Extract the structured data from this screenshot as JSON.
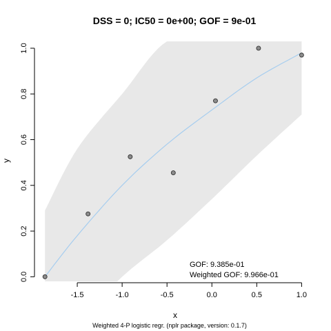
{
  "chart_data": {
    "type": "scatter",
    "title": "DSS = 0; IC50 = 0e+00; GOF = 9e-01",
    "xlabel": "x",
    "ylabel": "y",
    "caption": "Weighted 4-P logistic regr. (nplr package, version: 0.1.7)",
    "xlim": [
      -1.9,
      1.02
    ],
    "ylim": [
      -0.02,
      1.03
    ],
    "x_ticks": [
      -1.5,
      -1.0,
      -0.5,
      0.0,
      0.5,
      1.0
    ],
    "x_tick_labels": [
      "-1.5",
      "-1.0",
      "-0.5",
      "0.0",
      "0.5",
      "1.0"
    ],
    "y_ticks": [
      0.0,
      0.2,
      0.4,
      0.6,
      0.8,
      1.0
    ],
    "y_tick_labels": [
      "0.0",
      "0.2",
      "0.4",
      "0.6",
      "0.8",
      "1.0"
    ],
    "points": [
      {
        "x": -1.86,
        "y": 0.0
      },
      {
        "x": -1.38,
        "y": 0.275
      },
      {
        "x": -0.91,
        "y": 0.525
      },
      {
        "x": -0.43,
        "y": 0.455
      },
      {
        "x": 0.04,
        "y": 0.77
      },
      {
        "x": 0.52,
        "y": 1.0
      },
      {
        "x": 1.0,
        "y": 0.97
      }
    ],
    "fit_curve": {
      "x": [
        -1.86,
        -1.5,
        -1.0,
        -0.5,
        0.0,
        0.5,
        1.0
      ],
      "y": [
        0.0,
        0.18,
        0.4,
        0.58,
        0.73,
        0.87,
        0.98
      ]
    },
    "confidence_band": {
      "x": [
        -1.86,
        -1.5,
        -1.0,
        -0.5,
        0.0,
        0.5,
        1.0
      ],
      "lower": [
        -0.3,
        -0.2,
        0.0,
        0.16,
        0.34,
        0.53,
        0.71
      ],
      "upper": [
        0.29,
        0.56,
        0.8,
        1.03,
        1.03,
        1.03,
        1.03
      ]
    },
    "annotations": [
      "GOF: 9.385e-01",
      "Weighted GOF: 9.966e-01"
    ],
    "colors": {
      "band": "#e8e8e8",
      "curve": "#a6cdef",
      "point_fill": "#8c8c8c",
      "point_stroke": "#333333"
    },
    "grid": false
  }
}
